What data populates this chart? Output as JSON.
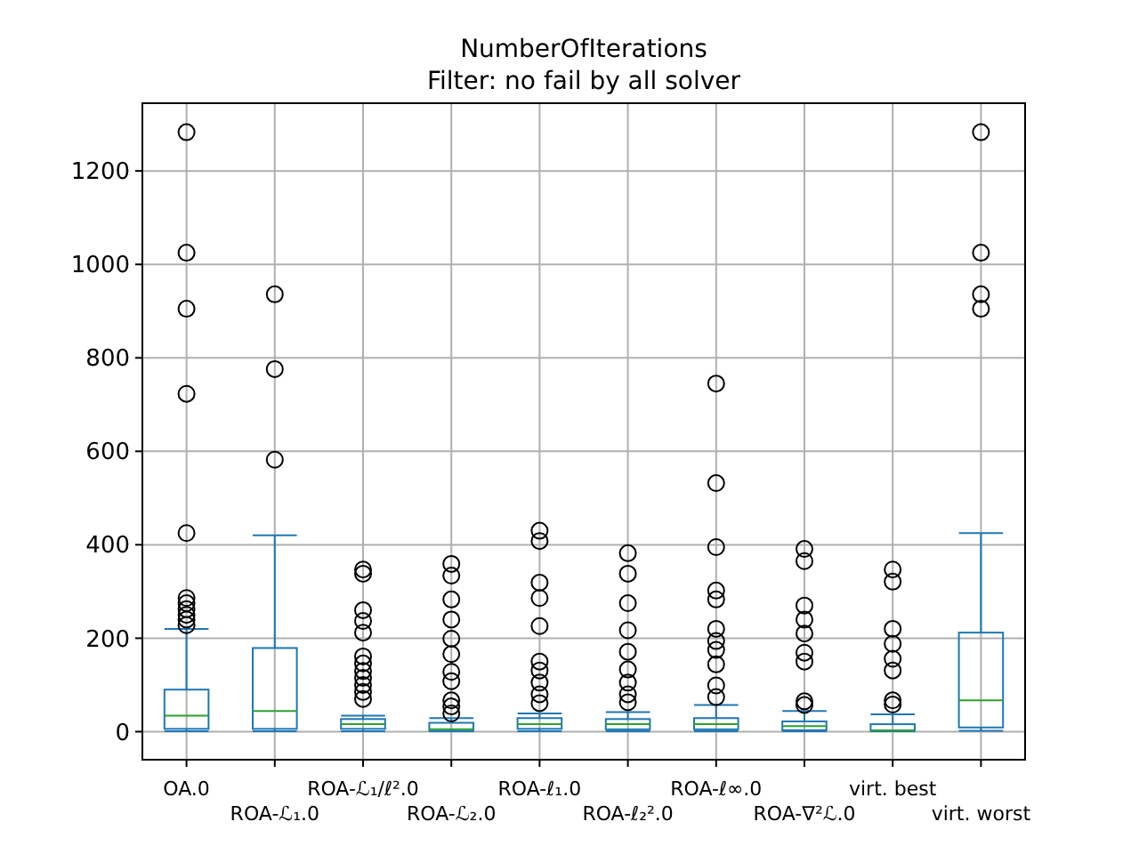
{
  "chart_data": {
    "type": "box",
    "title": "NumberOfIterations",
    "subtitle": "Filter: no fail by all solver",
    "categories": [
      "OA.0",
      "ROA-ℒ₁.0",
      "ROA-ℒ₁/ℓ².0",
      "ROA-ℒ₂.0",
      "ROA-ℓ₁.0",
      "ROA-ℓ₂².0",
      "ROA-ℓ∞.0",
      "ROA-∇²ℒ.0",
      "virt. best",
      "virt. worst"
    ],
    "ylim": [
      -60,
      1345
    ],
    "yticks": [
      0,
      200,
      400,
      600,
      800,
      1000,
      1200
    ],
    "grid": true,
    "series": [
      {
        "color": "#1f77b4",
        "boxes": [
          {
            "low": 1,
            "q1": 6,
            "median": 34,
            "q3": 90,
            "high": 220,
            "outliers": [
              1283,
              1025,
              905,
              723,
              425,
              286,
              275,
              262,
              250,
              240,
              228
            ]
          },
          {
            "low": 1,
            "q1": 6,
            "median": 44,
            "q3": 179,
            "high": 420,
            "outliers": [
              936,
              776,
              582
            ]
          },
          {
            "low": 1,
            "q1": 6,
            "median": 16,
            "q3": 27,
            "high": 34,
            "outliers": [
              347,
              338,
              260,
              237,
              212,
              161,
              146,
              130,
              115,
              100,
              85,
              70
            ]
          },
          {
            "low": 1,
            "q1": 2,
            "median": 5,
            "q3": 19,
            "high": 29,
            "outliers": [
              359,
              334,
              283,
              240,
              199,
              166,
              128,
              108,
              67,
              54,
              39
            ]
          },
          {
            "low": 1,
            "q1": 6,
            "median": 16,
            "q3": 29,
            "high": 39,
            "outliers": [
              430,
              408,
              319,
              286,
              226,
              150,
              131,
              105,
              80,
              61
            ]
          },
          {
            "low": 1,
            "q1": 5,
            "median": 16,
            "q3": 27,
            "high": 42,
            "outliers": [
              382,
              338,
              275,
              217,
              171,
              133,
              105,
              80,
              63
            ]
          },
          {
            "low": 1,
            "q1": 5,
            "median": 16,
            "q3": 29,
            "high": 57,
            "outliers": [
              745,
              532,
              395,
              302,
              283,
              220,
              194,
              175,
              144,
              99,
              74
            ]
          },
          {
            "low": 1,
            "q1": 3,
            "median": 12,
            "q3": 22,
            "high": 44,
            "outliers": [
              391,
              365,
              270,
              240,
              210,
              169,
              150,
              65,
              57
            ]
          },
          {
            "low": 1,
            "q1": 2,
            "median": 3,
            "q3": 16,
            "high": 37,
            "outliers": [
              347,
              321,
              220,
              188,
              156,
              131,
              67,
              58
            ]
          },
          {
            "low": 2,
            "q1": 9,
            "median": 67,
            "q3": 212,
            "high": 425,
            "outliers": [
              1283,
              1025,
              936,
              905
            ]
          }
        ]
      }
    ]
  }
}
